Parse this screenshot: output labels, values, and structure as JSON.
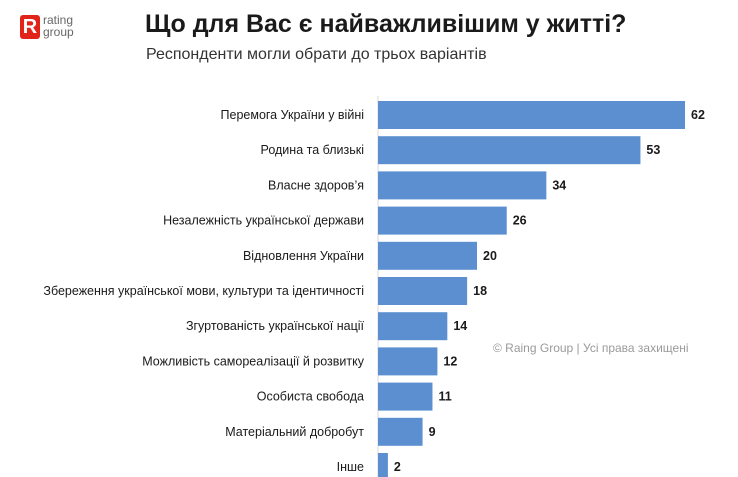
{
  "brand": {
    "mark": "R",
    "name_line1": "rating",
    "name_line2": "group"
  },
  "header": {
    "title": "Що для Вас є найважливішим у житті?",
    "subtitle": "Респонденти могли обрати до трьох варіантів"
  },
  "watermark": "© Raing Group | Усі права захищені",
  "colors": {
    "bar": "#5b8fd0",
    "brand": "#e2231a"
  },
  "chart_data": {
    "type": "bar",
    "orientation": "horizontal",
    "categories": [
      "Перемога України у війні",
      "Родина та близькі",
      "Власне здоров’я",
      "Незалежність української держави",
      "Відновлення України",
      "Збереження української мови, культури та ідентичності",
      "Згуртованість української нації",
      "Можливість самореалізації й розвитку",
      "Особиста свобода",
      "Матеріальний добробут",
      "Інше"
    ],
    "values": [
      62,
      53,
      34,
      26,
      20,
      18,
      14,
      12,
      11,
      9,
      2
    ],
    "xlim": [
      0,
      62
    ],
    "grid": false,
    "legend": "none"
  }
}
